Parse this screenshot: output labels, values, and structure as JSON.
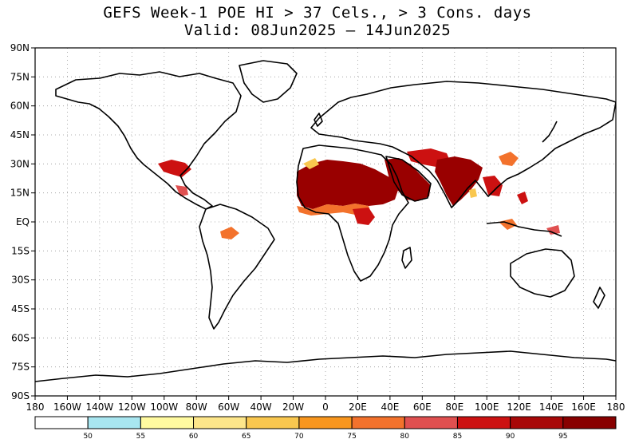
{
  "title_line1": "GEFS Week-1 POE HI > 37 Cels., > 3 Cons. days",
  "title_line2": "Valid: 08Jun2025 – 14Jun2025",
  "map": {
    "lat_labels": [
      "90N",
      "75N",
      "60N",
      "45N",
      "30N",
      "15N",
      "EQ",
      "15S",
      "30S",
      "45S",
      "60S",
      "75S",
      "90S"
    ],
    "lon_labels": [
      "180",
      "160W",
      "140W",
      "120W",
      "100W",
      "80W",
      "60W",
      "40W",
      "20W",
      "0",
      "20E",
      "40E",
      "60E",
      "80E",
      "100E",
      "120E",
      "140E",
      "160E",
      "180"
    ]
  },
  "colorbar": {
    "labels": [
      "50",
      "55",
      "60",
      "65",
      "70",
      "75",
      "80",
      "85",
      "90",
      "95"
    ],
    "colors": [
      "#ffffff",
      "#a8e6f0",
      "#fffaa0",
      "#fde68a",
      "#f9c74f",
      "#f8961e",
      "#f3722c",
      "#e05050",
      "#cc1111",
      "#a80808",
      "#880000"
    ]
  },
  "hotspot_colors": {
    "core": "#990000",
    "mid": "#cc1111",
    "edge": "#f3722c",
    "fringe": "#f9c74f"
  }
}
